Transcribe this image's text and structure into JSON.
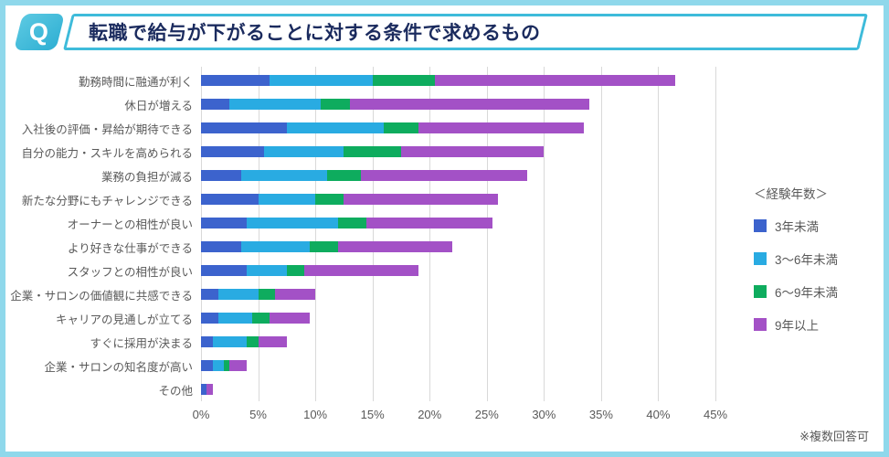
{
  "header": {
    "q_label": "Q",
    "title": "転職で給与が下がることに対する条件で求めるもの"
  },
  "legend": {
    "title": "＜経験年数＞"
  },
  "footnote": "※複数回答可",
  "theme": {
    "frame_border": "#8FD8EB",
    "accent": "#3EBBDA",
    "badge_gradient_start": "#5BC9E2",
    "badge_gradient_end": "#2FAFD3",
    "title_color": "#1B2B5E",
    "text_color": "#595959",
    "gridline_color": "#D9D9D9"
  },
  "chart_data": {
    "type": "bar",
    "orientation": "horizontal",
    "stacked": true,
    "title": "転職で給与が下がることに対する条件で求めるもの",
    "grid": true,
    "legend_position": "right",
    "xlim": [
      0,
      45
    ],
    "tick_values": [
      0,
      5,
      10,
      15,
      20,
      25,
      30,
      35,
      40,
      45
    ],
    "tick_labels": [
      "0%",
      "5%",
      "10%",
      "15%",
      "20%",
      "25%",
      "30%",
      "35%",
      "40%",
      "45%"
    ],
    "categories": [
      "勤務時間に融通が利く",
      "休日が増える",
      "入社後の評価・昇給が期待できる",
      "自分の能力・スキルを高められる",
      "業務の負担が減る",
      "新たな分野にもチャレンジできる",
      "オーナーとの相性が良い",
      "より好きな仕事ができる",
      "スタッフとの相性が良い",
      "企業・サロンの価値観に共感できる",
      "キャリアの見通しが立てる",
      "すぐに採用が決まる",
      "企業・サロンの知名度が高い",
      "その他"
    ],
    "series": [
      {
        "name": "3年未満",
        "color": "#3C63CD",
        "values": [
          6,
          2.5,
          7.5,
          5.5,
          3.5,
          5,
          4,
          3.5,
          4,
          1.5,
          1.5,
          1,
          1,
          0.5
        ]
      },
      {
        "name": "3～6年未満",
        "color": "#29ABE2",
        "values": [
          9,
          8,
          8.5,
          7,
          7.5,
          5,
          8,
          6,
          3.5,
          3.5,
          3,
          3,
          1,
          0
        ]
      },
      {
        "name": "6～9年未満",
        "color": "#0EAC5E",
        "values": [
          5.5,
          2.5,
          3,
          5,
          3,
          2.5,
          2.5,
          2.5,
          1.5,
          1.5,
          1.5,
          1,
          0.5,
          0
        ]
      },
      {
        "name": "9年以上",
        "color": "#A351C6",
        "values": [
          21,
          21,
          14.5,
          12.5,
          14.5,
          13.5,
          11,
          10,
          10,
          3.5,
          3.5,
          2.5,
          1.5,
          0.5
        ]
      }
    ],
    "totals": [
      41.5,
      34,
      33.5,
      30,
      28.5,
      26,
      25.5,
      22,
      19,
      10,
      9.5,
      7.5,
      4,
      1
    ]
  }
}
